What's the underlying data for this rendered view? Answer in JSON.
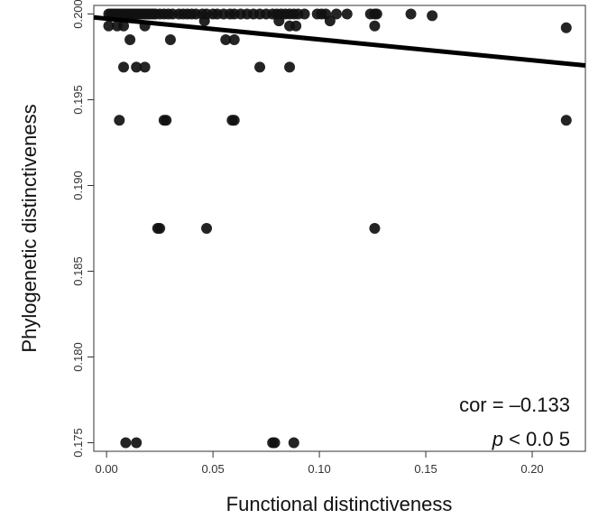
{
  "chart_data": {
    "type": "scatter",
    "xlabel": "Functional distinctiveness",
    "ylabel": "Phylogenetic distinctiveness",
    "xlim": [
      -0.006,
      0.225
    ],
    "ylim": [
      0.1745,
      0.2005
    ],
    "x_ticks": [
      {
        "value": 0.0,
        "label": "0.00"
      },
      {
        "value": 0.05,
        "label": "0.05"
      },
      {
        "value": 0.1,
        "label": "0.10"
      },
      {
        "value": 0.15,
        "label": "0.15"
      },
      {
        "value": 0.2,
        "label": "0.20"
      }
    ],
    "y_ticks": [
      {
        "value": 0.175,
        "label": "0.175"
      },
      {
        "value": 0.18,
        "label": "0.180"
      },
      {
        "value": 0.185,
        "label": "0.185"
      },
      {
        "value": 0.19,
        "label": "0.190"
      },
      {
        "value": 0.195,
        "label": "0.195"
      },
      {
        "value": 0.2,
        "label": "0.200"
      }
    ],
    "points": [
      {
        "x": 0.001,
        "y": 0.2
      },
      {
        "x": 0.002,
        "y": 0.2
      },
      {
        "x": 0.003,
        "y": 0.2
      },
      {
        "x": 0.004,
        "y": 0.2
      },
      {
        "x": 0.005,
        "y": 0.2
      },
      {
        "x": 0.006,
        "y": 0.2
      },
      {
        "x": 0.007,
        "y": 0.2
      },
      {
        "x": 0.008,
        "y": 0.2
      },
      {
        "x": 0.009,
        "y": 0.2
      },
      {
        "x": 0.01,
        "y": 0.2
      },
      {
        "x": 0.011,
        "y": 0.2
      },
      {
        "x": 0.012,
        "y": 0.2
      },
      {
        "x": 0.013,
        "y": 0.2
      },
      {
        "x": 0.014,
        "y": 0.2
      },
      {
        "x": 0.015,
        "y": 0.2
      },
      {
        "x": 0.016,
        "y": 0.2
      },
      {
        "x": 0.017,
        "y": 0.2
      },
      {
        "x": 0.018,
        "y": 0.2
      },
      {
        "x": 0.019,
        "y": 0.2
      },
      {
        "x": 0.02,
        "y": 0.2
      },
      {
        "x": 0.021,
        "y": 0.2
      },
      {
        "x": 0.022,
        "y": 0.2
      },
      {
        "x": 0.023,
        "y": 0.2
      },
      {
        "x": 0.025,
        "y": 0.2
      },
      {
        "x": 0.027,
        "y": 0.2
      },
      {
        "x": 0.029,
        "y": 0.2
      },
      {
        "x": 0.031,
        "y": 0.2
      },
      {
        "x": 0.034,
        "y": 0.2
      },
      {
        "x": 0.036,
        "y": 0.2
      },
      {
        "x": 0.038,
        "y": 0.2
      },
      {
        "x": 0.04,
        "y": 0.2
      },
      {
        "x": 0.042,
        "y": 0.2
      },
      {
        "x": 0.045,
        "y": 0.2
      },
      {
        "x": 0.047,
        "y": 0.2
      },
      {
        "x": 0.05,
        "y": 0.2
      },
      {
        "x": 0.052,
        "y": 0.2
      },
      {
        "x": 0.055,
        "y": 0.2
      },
      {
        "x": 0.058,
        "y": 0.2
      },
      {
        "x": 0.06,
        "y": 0.2
      },
      {
        "x": 0.063,
        "y": 0.2
      },
      {
        "x": 0.066,
        "y": 0.2
      },
      {
        "x": 0.069,
        "y": 0.2
      },
      {
        "x": 0.072,
        "y": 0.2
      },
      {
        "x": 0.075,
        "y": 0.2
      },
      {
        "x": 0.078,
        "y": 0.2
      },
      {
        "x": 0.08,
        "y": 0.2
      },
      {
        "x": 0.082,
        "y": 0.2
      },
      {
        "x": 0.084,
        "y": 0.2
      },
      {
        "x": 0.086,
        "y": 0.2
      },
      {
        "x": 0.088,
        "y": 0.2
      },
      {
        "x": 0.09,
        "y": 0.2
      },
      {
        "x": 0.093,
        "y": 0.2
      },
      {
        "x": 0.099,
        "y": 0.2
      },
      {
        "x": 0.101,
        "y": 0.2
      },
      {
        "x": 0.103,
        "y": 0.2
      },
      {
        "x": 0.108,
        "y": 0.2
      },
      {
        "x": 0.113,
        "y": 0.2
      },
      {
        "x": 0.124,
        "y": 0.2
      },
      {
        "x": 0.126,
        "y": 0.2
      },
      {
        "x": 0.127,
        "y": 0.2
      },
      {
        "x": 0.143,
        "y": 0.2
      },
      {
        "x": 0.001,
        "y": 0.1993
      },
      {
        "x": 0.005,
        "y": 0.1993
      },
      {
        "x": 0.008,
        "y": 0.1993
      },
      {
        "x": 0.018,
        "y": 0.1993
      },
      {
        "x": 0.046,
        "y": 0.1996
      },
      {
        "x": 0.081,
        "y": 0.1996
      },
      {
        "x": 0.086,
        "y": 0.1993
      },
      {
        "x": 0.089,
        "y": 0.1993
      },
      {
        "x": 0.105,
        "y": 0.1996
      },
      {
        "x": 0.126,
        "y": 0.1993
      },
      {
        "x": 0.153,
        "y": 0.1999
      },
      {
        "x": 0.216,
        "y": 0.1992
      },
      {
        "x": 0.011,
        "y": 0.1985
      },
      {
        "x": 0.03,
        "y": 0.1985
      },
      {
        "x": 0.056,
        "y": 0.1985
      },
      {
        "x": 0.06,
        "y": 0.1985
      },
      {
        "x": 0.008,
        "y": 0.1969
      },
      {
        "x": 0.014,
        "y": 0.1969
      },
      {
        "x": 0.018,
        "y": 0.1969
      },
      {
        "x": 0.072,
        "y": 0.1969
      },
      {
        "x": 0.086,
        "y": 0.1969
      },
      {
        "x": 0.006,
        "y": 0.1938
      },
      {
        "x": 0.027,
        "y": 0.1938
      },
      {
        "x": 0.028,
        "y": 0.1938
      },
      {
        "x": 0.059,
        "y": 0.1938
      },
      {
        "x": 0.06,
        "y": 0.1938
      },
      {
        "x": 0.216,
        "y": 0.1938
      },
      {
        "x": 0.024,
        "y": 0.1875
      },
      {
        "x": 0.025,
        "y": 0.1875
      },
      {
        "x": 0.047,
        "y": 0.1875
      },
      {
        "x": 0.126,
        "y": 0.1875
      },
      {
        "x": 0.009,
        "y": 0.175
      },
      {
        "x": 0.014,
        "y": 0.175
      },
      {
        "x": 0.078,
        "y": 0.175
      },
      {
        "x": 0.079,
        "y": 0.175
      },
      {
        "x": 0.088,
        "y": 0.175
      }
    ],
    "regression_line": {
      "x": [
        -0.006,
        0.225
      ],
      "y": [
        0.1998,
        0.197
      ]
    },
    "colors": {
      "points": "#111111",
      "line": "#000000",
      "axis": "#333333"
    }
  },
  "annotation": {
    "cor_text": "cor = –0.133",
    "p_symbol": "p",
    "p_value_text": " < 0.0 5"
  }
}
